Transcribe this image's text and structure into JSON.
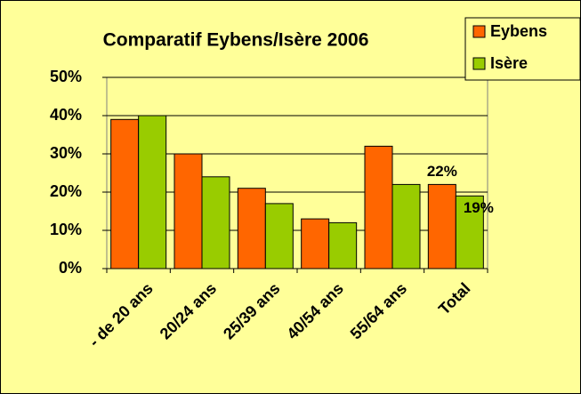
{
  "chart_data": {
    "type": "bar",
    "title": "Comparatif Eybens/Isère 2006",
    "categories": [
      "- de 20 ans",
      "20/24 ans",
      "25/39 ans",
      "40/54 ans",
      "55/64 ans",
      "Total"
    ],
    "series": [
      {
        "name": "Eybens",
        "color": "#ff6600",
        "values": [
          39,
          30,
          21,
          13,
          32,
          22
        ],
        "value_labels": [
          null,
          null,
          null,
          null,
          null,
          "22%"
        ]
      },
      {
        "name": "Isère",
        "color": "#99cc00",
        "values": [
          40,
          24,
          17,
          12,
          22,
          19
        ],
        "value_labels": [
          null,
          null,
          null,
          null,
          null,
          "19%"
        ]
      }
    ],
    "ylim": [
      0,
      50
    ],
    "yticks": [
      {
        "value": 0,
        "label": "0%"
      },
      {
        "value": 10,
        "label": "10%"
      },
      {
        "value": 20,
        "label": "20%"
      },
      {
        "value": 30,
        "label": "30%"
      },
      {
        "value": 40,
        "label": "40%"
      },
      {
        "value": 50,
        "label": "50%"
      }
    ],
    "grid": true,
    "legend": "top-right"
  }
}
